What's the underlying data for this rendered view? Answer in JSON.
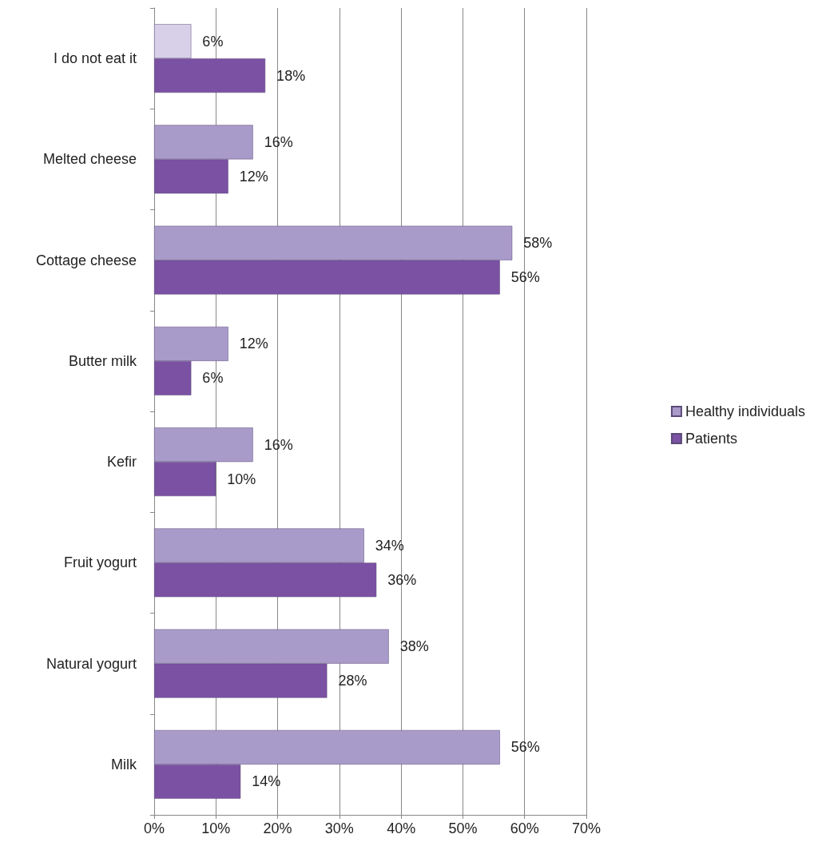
{
  "chart_data": {
    "type": "bar",
    "orientation": "horizontal",
    "categories": [
      "I do not eat it",
      "Melted cheese",
      "Cottage cheese",
      "Butter milk",
      "Kefir",
      "Fruit yogurt",
      "Natural yogurt",
      "Milk"
    ],
    "series": [
      {
        "name": "Healthy individuals",
        "color": "#a99bc9",
        "colors": [
          "#d8d0e8",
          "#a99bc9",
          "#a99bc9",
          "#a99bc9",
          "#a99bc9",
          "#a99bc9",
          "#a99bc9",
          "#a99bc9"
        ],
        "values": [
          6,
          16,
          58,
          12,
          16,
          34,
          38,
          56
        ],
        "value_labels": [
          "6%",
          "16%",
          "58%",
          "12%",
          "16%",
          "34%",
          "38%",
          "56%"
        ]
      },
      {
        "name": "Patients",
        "color": "#7b51a3",
        "values": [
          18,
          12,
          56,
          6,
          10,
          36,
          28,
          14
        ],
        "value_labels": [
          "18%",
          "12%",
          "56%",
          "6%",
          "10%",
          "36%",
          "28%",
          "14%"
        ]
      }
    ],
    "xlim": [
      0,
      70
    ],
    "xticks": [
      {
        "value": 0,
        "label": "0%"
      },
      {
        "value": 10,
        "label": "10%"
      },
      {
        "value": 20,
        "label": "20%"
      },
      {
        "value": 30,
        "label": "30%"
      },
      {
        "value": 40,
        "label": "40%"
      },
      {
        "value": 50,
        "label": "50%"
      },
      {
        "value": 60,
        "label": "60%"
      },
      {
        "value": 70,
        "label": "70%"
      }
    ],
    "grid": "x",
    "legend": "right"
  }
}
